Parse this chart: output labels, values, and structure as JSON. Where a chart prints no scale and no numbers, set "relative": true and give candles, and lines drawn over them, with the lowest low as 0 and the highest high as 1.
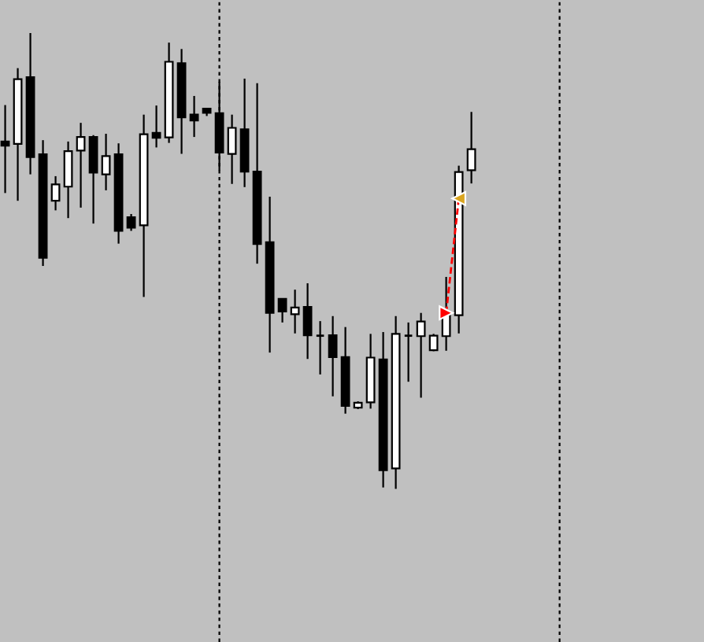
{
  "chart_data": {
    "type": "candlestick",
    "relative": true,
    "categories": [
      null,
      null,
      null,
      null,
      null,
      null,
      null,
      null,
      null,
      null,
      null,
      null,
      null,
      null,
      null,
      null,
      null,
      null,
      null,
      null,
      null,
      null,
      null,
      null,
      null,
      null,
      null,
      null,
      null,
      null,
      null,
      null,
      null,
      null,
      null,
      null,
      null,
      null
    ],
    "ohlc": [
      [
        0.762,
        0.842,
        0.649,
        0.753
      ],
      [
        0.757,
        0.923,
        0.632,
        0.899
      ],
      [
        0.903,
        1.0,
        0.69,
        0.728
      ],
      [
        0.734,
        0.765,
        0.489,
        0.507
      ],
      [
        0.632,
        0.686,
        0.611,
        0.668
      ],
      [
        0.663,
        0.762,
        0.594,
        0.741
      ],
      [
        0.742,
        0.803,
        0.617,
        0.772
      ],
      [
        0.772,
        0.776,
        0.582,
        0.694
      ],
      [
        0.69,
        0.779,
        0.655,
        0.73
      ],
      [
        0.734,
        0.758,
        0.538,
        0.566
      ],
      [
        0.596,
        0.603,
        0.566,
        0.573
      ],
      [
        0.578,
        0.821,
        0.421,
        0.778
      ],
      [
        0.781,
        0.841,
        0.749,
        0.77
      ],
      [
        0.771,
        0.979,
        0.759,
        0.937
      ],
      [
        0.934,
        0.965,
        0.735,
        0.815
      ],
      [
        0.821,
        0.862,
        0.772,
        0.808
      ],
      [
        0.834,
        0.834,
        0.818,
        0.825
      ],
      [
        0.824,
        0.893,
        0.699,
        0.738
      ],
      [
        0.735,
        0.821,
        0.669,
        0.792
      ],
      [
        0.789,
        0.9,
        0.662,
        0.696
      ],
      [
        0.696,
        0.89,
        0.494,
        0.537
      ],
      [
        0.541,
        0.641,
        0.299,
        0.386
      ],
      [
        0.417,
        0.417,
        0.365,
        0.389
      ],
      [
        0.383,
        0.437,
        0.341,
        0.398
      ],
      [
        0.399,
        0.451,
        0.285,
        0.337
      ],
      [
        0.336,
        0.368,
        0.251,
        0.336
      ],
      [
        0.337,
        0.379,
        0.203,
        0.289
      ],
      [
        0.289,
        0.355,
        0.165,
        0.182
      ],
      [
        0.178,
        0.192,
        0.175,
        0.189
      ],
      [
        0.19,
        0.34,
        0.176,
        0.288
      ],
      [
        0.284,
        0.344,
        0.003,
        0.041
      ],
      [
        0.045,
        0.379,
        0.0,
        0.34
      ],
      [
        0.336,
        0.365,
        0.235,
        0.336
      ],
      [
        0.335,
        0.386,
        0.2,
        0.367
      ],
      [
        0.304,
        0.34,
        0.302,
        0.336
      ],
      [
        0.335,
        0.465,
        0.303,
        0.385
      ],
      [
        0.381,
        0.709,
        0.341,
        0.695
      ],
      [
        0.699,
        0.827,
        0.67,
        0.745
      ]
    ],
    "colors": [
      "#000000",
      "#ffffff",
      "#000000",
      "#000000",
      "#ffffff",
      "#ffffff",
      "#ffffff",
      "#000000",
      "#ffffff",
      "#000000",
      "#000000",
      "#ffffff",
      "#000000",
      "#ffffff",
      "#000000",
      "#000000",
      "#000000",
      "#000000",
      "#ffffff",
      "#000000",
      "#000000",
      "#000000",
      "#000000",
      "#ffffff",
      "#000000",
      "#000000",
      "#000000",
      "#000000",
      "#ffffff",
      "#ffffff",
      "#000000",
      "#ffffff",
      "#000000",
      "#ffffff",
      "#ffffff",
      "#ffffff",
      "#ffffff",
      "#ffffff"
    ],
    "series": [
      {
        "type": "line",
        "color": "#ff0000",
        "line_style": "dashed",
        "marker": "none",
        "values": [
          null,
          null,
          null,
          null,
          null,
          null,
          null,
          null,
          null,
          null,
          null,
          null,
          null,
          null,
          null,
          null,
          null,
          null,
          null,
          null,
          null,
          null,
          null,
          null,
          null,
          null,
          null,
          null,
          null,
          null,
          null,
          null,
          null,
          null,
          null,
          0.386,
          0.637,
          null
        ]
      },
      {
        "type": "scatter",
        "marker": "triangle",
        "colors": [
          null,
          null,
          null,
          null,
          null,
          null,
          null,
          null,
          null,
          null,
          null,
          null,
          null,
          null,
          null,
          null,
          null,
          null,
          null,
          null,
          null,
          null,
          null,
          null,
          null,
          null,
          null,
          null,
          null,
          null,
          null,
          null,
          null,
          null,
          null,
          "#ff0000",
          "#daa520",
          null
        ],
        "values": [
          null,
          null,
          null,
          null,
          null,
          null,
          null,
          null,
          null,
          null,
          null,
          null,
          null,
          null,
          null,
          null,
          null,
          null,
          null,
          null,
          null,
          null,
          null,
          null,
          null,
          null,
          null,
          null,
          null,
          null,
          null,
          null,
          null,
          null,
          null,
          0.386,
          0.637,
          null
        ]
      }
    ]
  }
}
